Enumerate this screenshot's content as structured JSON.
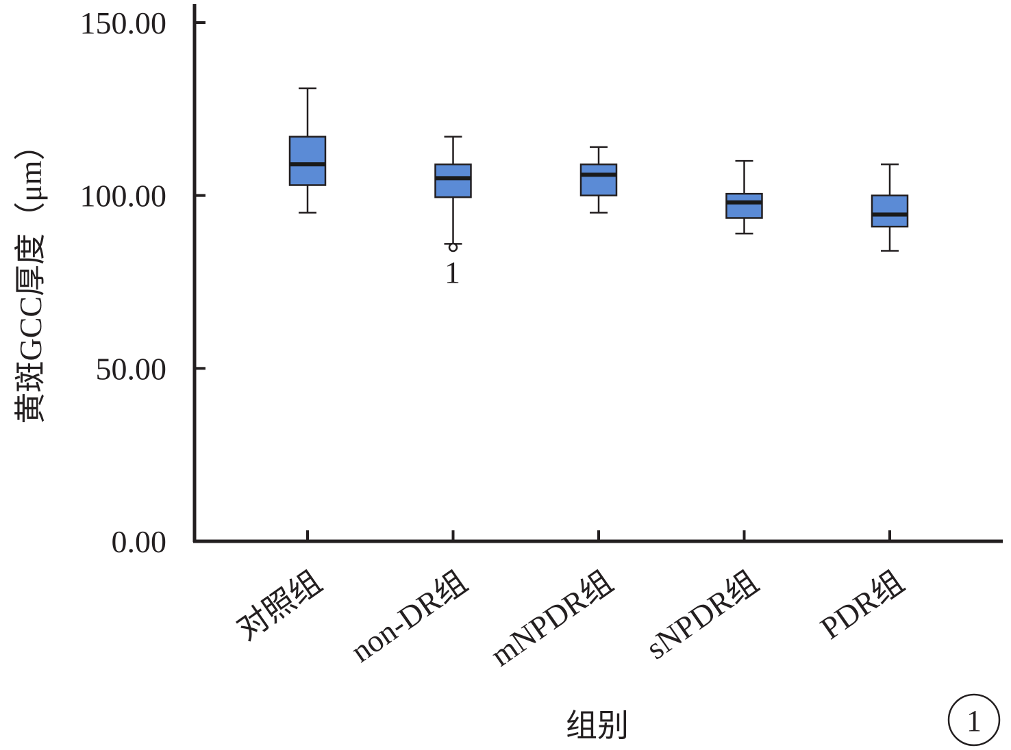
{
  "chart_data": {
    "type": "boxplot",
    "xlabel": "组别",
    "ylabel": "黄斑GCC厚度（μm）",
    "ylim": [
      0,
      150
    ],
    "yticks": [
      "0.00",
      "50.00",
      "100.00",
      "150.00"
    ],
    "ytick_values": [
      0,
      50,
      100,
      150
    ],
    "grid": false,
    "categories": [
      "对照组",
      "non-DR组",
      "mNPDR组",
      "sNPDR组",
      "PDR组"
    ],
    "boxes": [
      {
        "category": "对照组",
        "min": 95,
        "q1": 103,
        "median": 109,
        "q3": 117,
        "max": 131
      },
      {
        "category": "non-DR组",
        "min": 86,
        "q1": 99.5,
        "median": 105,
        "q3": 109,
        "max": 117
      },
      {
        "category": "mNPDR组",
        "min": 95,
        "q1": 100,
        "median": 106,
        "q3": 109,
        "max": 114
      },
      {
        "category": "sNPDR组",
        "min": 89,
        "q1": 93.5,
        "median": 98,
        "q3": 100.5,
        "max": 110
      },
      {
        "category": "PDR组",
        "min": 84,
        "q1": 91,
        "median": 94.5,
        "q3": 100,
        "max": 109
      }
    ],
    "outliers": [
      {
        "category": "non-DR组",
        "value": 85,
        "label": "1"
      }
    ],
    "box_color": "#5b8bd6",
    "line_color": "#231f20"
  },
  "figure_number": "1"
}
